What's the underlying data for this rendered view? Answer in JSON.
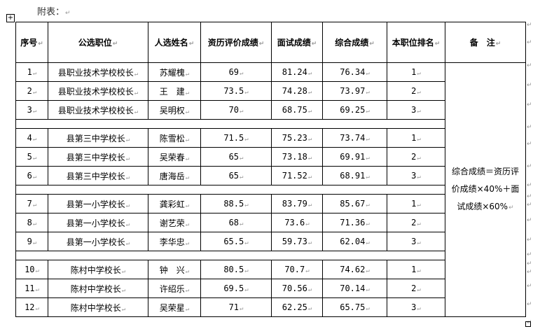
{
  "caption": "附表：",
  "table": {
    "headers": [
      "序号",
      "公选职位",
      "人选姓名",
      "资历评价成绩",
      "面试成绩",
      "综合成绩",
      "本职位排名",
      "备　注"
    ],
    "groups": [
      {
        "rows": [
          {
            "no": "1",
            "position": "县职业技术学校校长",
            "name": "苏耀槐",
            "qualification": "69",
            "interview": "81.24",
            "total": "76.34",
            "rank": "1"
          },
          {
            "no": "2",
            "position": "县职业技术学校校长",
            "name": "王　建",
            "qualification": "73.5",
            "interview": "74.28",
            "total": "73.97",
            "rank": "2"
          },
          {
            "no": "3",
            "position": "县职业技术学校校长",
            "name": "吴明权",
            "qualification": "70",
            "interview": "68.75",
            "total": "69.25",
            "rank": "3"
          }
        ]
      },
      {
        "rows": [
          {
            "no": "4",
            "position": "县第三中学校长",
            "name": "陈雪松",
            "qualification": "71.5",
            "interview": "75.23",
            "total": "73.74",
            "rank": "1"
          },
          {
            "no": "5",
            "position": "县第三中学校长",
            "name": "吴荣春",
            "qualification": "65",
            "interview": "73.18",
            "total": "69.91",
            "rank": "2"
          },
          {
            "no": "6",
            "position": "县第三中学校长",
            "name": "唐海岳",
            "qualification": "65",
            "interview": "71.52",
            "total": "68.91",
            "rank": "3"
          }
        ]
      },
      {
        "rows": [
          {
            "no": "7",
            "position": "县第一小学校长",
            "name": "龚彩虹",
            "qualification": "88.5",
            "interview": "83.79",
            "total": "85.67",
            "rank": "1"
          },
          {
            "no": "8",
            "position": "县第一小学校长",
            "name": "谢艺荣",
            "qualification": "68",
            "interview": "73.6",
            "total": "71.36",
            "rank": "2"
          },
          {
            "no": "9",
            "position": "县第一小学校长",
            "name": "李华忠",
            "qualification": "65.5",
            "interview": "59.73",
            "total": "62.04",
            "rank": "3"
          }
        ]
      },
      {
        "rows": [
          {
            "no": "10",
            "position": "陈村中学校长",
            "name": "钟　兴",
            "qualification": "80.5",
            "interview": "70.7",
            "total": "74.62",
            "rank": "1"
          },
          {
            "no": "11",
            "position": "陈村中学校长",
            "name": "许绍乐",
            "qualification": "69.5",
            "interview": "70.56",
            "total": "70.14",
            "rank": "2"
          },
          {
            "no": "12",
            "position": "陈村中学校长",
            "name": "吴荣星",
            "qualification": "71",
            "interview": "62.25",
            "total": "65.75",
            "rank": "3"
          }
        ]
      }
    ],
    "note": "综合成绩＝资历评价成绩×40%＋面试成绩×60%"
  }
}
